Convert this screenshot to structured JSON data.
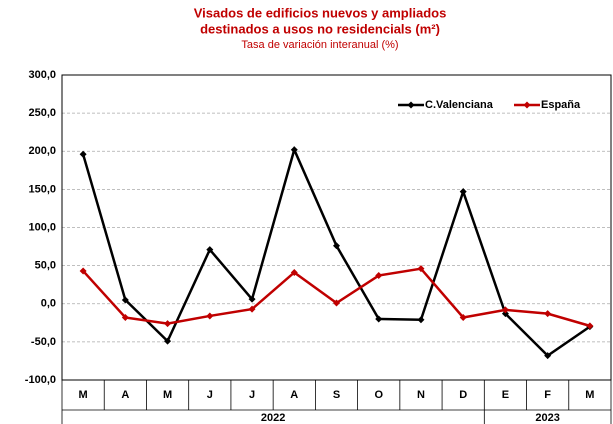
{
  "chart_data": {
    "type": "line",
    "title": "Visados de edificios nuevos y ampliados",
    "title_line2": "destinados a usos no residencials (m²)",
    "subtitle": "Tasa de variación interanual (%)",
    "categories": [
      "M",
      "A",
      "M",
      "J",
      "J",
      "A",
      "S",
      "O",
      "N",
      "D",
      "E",
      "F",
      "M"
    ],
    "years": [
      "2022",
      "2023"
    ],
    "series": [
      {
        "name": "C.Valenciana",
        "color": "#000000",
        "values": [
          196,
          5,
          -49,
          71,
          6,
          202,
          76,
          -20,
          -21,
          147,
          -13,
          -68,
          -30
        ]
      },
      {
        "name": "España",
        "color": "#c00000",
        "values": [
          43,
          -18,
          -26,
          -16,
          -7,
          41,
          1,
          37,
          46,
          -18,
          -8,
          -13,
          -29
        ]
      }
    ],
    "ylim": [
      -100,
      300
    ],
    "yticks": [
      {
        "value": -100,
        "label": "-100,0"
      },
      {
        "value": -50,
        "label": "-50,0"
      },
      {
        "value": 0,
        "label": "0,0"
      },
      {
        "value": 50,
        "label": "50,0"
      },
      {
        "value": 100,
        "label": "100,0"
      },
      {
        "value": 150,
        "label": "150,0"
      },
      {
        "value": 200,
        "label": "200,0"
      },
      {
        "value": 250,
        "label": "250,0"
      },
      {
        "value": 300,
        "label": "300,0"
      }
    ],
    "grid": true,
    "legend": "top-right"
  }
}
